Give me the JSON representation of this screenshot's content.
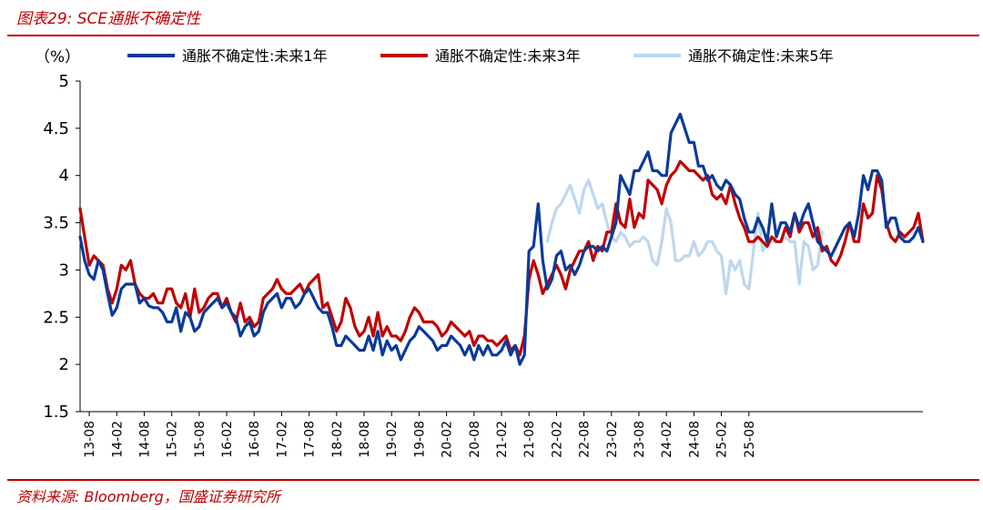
{
  "figure": {
    "title": "图表29:  SCE通胀不确定性",
    "source": "资料来源:  Bloomberg，国盛证券研究所"
  },
  "chart_data": {
    "type": "line",
    "unit_label": "（%）",
    "ylim": [
      1.5,
      5
    ],
    "yticks": [
      1.5,
      2,
      2.5,
      3,
      3.5,
      4,
      4.5,
      5
    ],
    "ytick_labels": [
      "1.5",
      "2",
      "2.5",
      "3",
      "3.5",
      "4",
      "4.5",
      "5"
    ],
    "xticks": [
      "13-08",
      "14-02",
      "14-08",
      "15-02",
      "15-08",
      "16-02",
      "16-08",
      "17-02",
      "17-08",
      "18-02",
      "18-08",
      "19-02",
      "19-08",
      "20-02",
      "20-08",
      "21-02",
      "21-08",
      "22-02",
      "22-08",
      "23-02",
      "23-08",
      "24-02",
      "24-08",
      "25-02",
      "25-08"
    ],
    "x_start": "2013-06",
    "grid": false,
    "legend_position": "top",
    "series": [
      {
        "name": "通胀不确定性:未来1年",
        "color": "#0a3a9a",
        "start": "2013-06",
        "values": [
          3.35,
          3.1,
          2.95,
          2.9,
          3.1,
          3.0,
          2.75,
          2.52,
          2.6,
          2.8,
          2.85,
          2.85,
          2.85,
          2.65,
          2.7,
          2.62,
          2.6,
          2.6,
          2.55,
          2.45,
          2.45,
          2.6,
          2.35,
          2.55,
          2.5,
          2.35,
          2.4,
          2.55,
          2.6,
          2.65,
          2.7,
          2.6,
          2.65,
          2.55,
          2.5,
          2.3,
          2.4,
          2.45,
          2.3,
          2.35,
          2.55,
          2.65,
          2.7,
          2.75,
          2.6,
          2.7,
          2.7,
          2.6,
          2.65,
          2.75,
          2.8,
          2.7,
          2.6,
          2.55,
          2.55,
          2.4,
          2.2,
          2.2,
          2.3,
          2.25,
          2.2,
          2.15,
          2.15,
          2.3,
          2.15,
          2.35,
          2.1,
          2.25,
          2.15,
          2.2,
          2.05,
          2.15,
          2.25,
          2.3,
          2.4,
          2.35,
          2.3,
          2.25,
          2.15,
          2.2,
          2.2,
          2.3,
          2.25,
          2.2,
          2.1,
          2.2,
          2.05,
          2.2,
          2.1,
          2.2,
          2.1,
          2.1,
          2.15,
          2.25,
          2.1,
          2.2,
          2.0,
          2.1,
          3.2,
          3.25,
          3.7,
          3.1,
          2.8,
          2.9,
          3.15,
          3.2,
          3.0,
          3.05,
          2.95,
          3.05,
          3.2,
          3.25,
          3.25,
          3.2,
          3.25,
          3.2,
          3.35,
          3.5,
          4.0,
          3.9,
          3.8,
          4.05,
          4.05,
          4.15,
          4.25,
          4.05,
          4.05,
          4.0,
          4.0,
          4.45,
          4.55,
          4.65,
          4.5,
          4.35,
          4.35,
          4.1,
          4.1,
          3.95,
          4.0,
          3.9,
          3.85,
          3.95,
          3.9,
          3.8,
          3.75,
          3.55,
          3.4,
          3.4,
          3.55,
          3.45,
          3.3,
          3.7,
          3.35,
          3.5,
          3.5,
          3.4,
          3.6,
          3.45,
          3.6,
          3.7,
          3.5,
          3.3,
          3.25,
          3.2,
          3.15,
          3.25,
          3.35,
          3.45,
          3.5,
          3.35,
          3.6,
          4.0,
          3.85,
          4.05,
          4.05,
          3.95,
          3.45,
          3.55,
          3.55,
          3.35,
          3.3,
          3.3,
          3.35,
          3.45,
          3.3
        ]
      },
      {
        "name": "通胀不确定性:未来3年",
        "color": "#c00000",
        "start": "2013-06",
        "values": [
          3.65,
          3.35,
          3.05,
          3.15,
          3.1,
          3.05,
          2.8,
          2.65,
          2.8,
          3.05,
          3.0,
          3.1,
          2.85,
          2.75,
          2.7,
          2.7,
          2.75,
          2.65,
          2.65,
          2.8,
          2.8,
          2.65,
          2.6,
          2.75,
          2.5,
          2.8,
          2.55,
          2.6,
          2.7,
          2.75,
          2.75,
          2.6,
          2.7,
          2.55,
          2.45,
          2.65,
          2.45,
          2.5,
          2.4,
          2.45,
          2.7,
          2.75,
          2.8,
          2.9,
          2.8,
          2.75,
          2.75,
          2.8,
          2.85,
          2.75,
          2.85,
          2.9,
          2.95,
          2.6,
          2.65,
          2.5,
          2.35,
          2.45,
          2.7,
          2.6,
          2.4,
          2.3,
          2.35,
          2.5,
          2.3,
          2.55,
          2.3,
          2.4,
          2.3,
          2.3,
          2.25,
          2.35,
          2.5,
          2.6,
          2.55,
          2.45,
          2.45,
          2.45,
          2.4,
          2.3,
          2.35,
          2.45,
          2.4,
          2.35,
          2.3,
          2.35,
          2.2,
          2.3,
          2.3,
          2.25,
          2.25,
          2.2,
          2.25,
          2.3,
          2.15,
          2.2,
          2.1,
          2.3,
          2.9,
          3.1,
          2.95,
          2.75,
          2.85,
          2.95,
          3.05,
          2.95,
          2.8,
          3.0,
          3.1,
          3.2,
          3.2,
          3.3,
          3.1,
          3.25,
          3.2,
          3.4,
          3.4,
          3.7,
          3.5,
          3.45,
          3.75,
          3.45,
          3.6,
          3.55,
          3.95,
          3.9,
          3.85,
          3.7,
          3.9,
          4.0,
          4.05,
          4.15,
          4.1,
          4.05,
          4.05,
          4.0,
          3.95,
          4.0,
          3.8,
          3.75,
          3.8,
          3.7,
          3.9,
          3.7,
          3.55,
          3.45,
          3.3,
          3.3,
          3.35,
          3.3,
          3.25,
          3.35,
          3.3,
          3.3,
          3.45,
          3.35,
          3.6,
          3.4,
          3.5,
          3.5,
          3.35,
          3.45,
          3.2,
          3.25,
          3.1,
          3.05,
          3.15,
          3.3,
          3.5,
          3.3,
          3.3,
          3.7,
          3.55,
          3.6,
          4.0,
          3.85,
          3.5,
          3.35,
          3.3,
          3.4,
          3.35,
          3.4,
          3.45,
          3.6,
          3.3
        ]
      },
      {
        "name": "通胀不确定性:未来5年",
        "color": "#bdd7ee",
        "start": "2021-12",
        "values": [
          3.3,
          3.5,
          3.65,
          3.7,
          3.8,
          3.9,
          3.75,
          3.6,
          3.85,
          3.95,
          3.8,
          3.65,
          3.7,
          3.5,
          3.35,
          3.3,
          3.4,
          3.35,
          3.25,
          3.3,
          3.3,
          3.35,
          3.3,
          3.1,
          3.05,
          3.3,
          3.65,
          3.5,
          3.1,
          3.1,
          3.15,
          3.15,
          3.3,
          3.15,
          3.2,
          3.3,
          3.3,
          3.2,
          3.15,
          2.75,
          3.1,
          3.0,
          3.1,
          2.85,
          2.8,
          3.2,
          3.6,
          3.2,
          3.3,
          3.3,
          3.3,
          3.3,
          3.35,
          3.3,
          3.3,
          2.85,
          3.3,
          3.25,
          3.0,
          3.05,
          3.4
        ]
      }
    ]
  }
}
